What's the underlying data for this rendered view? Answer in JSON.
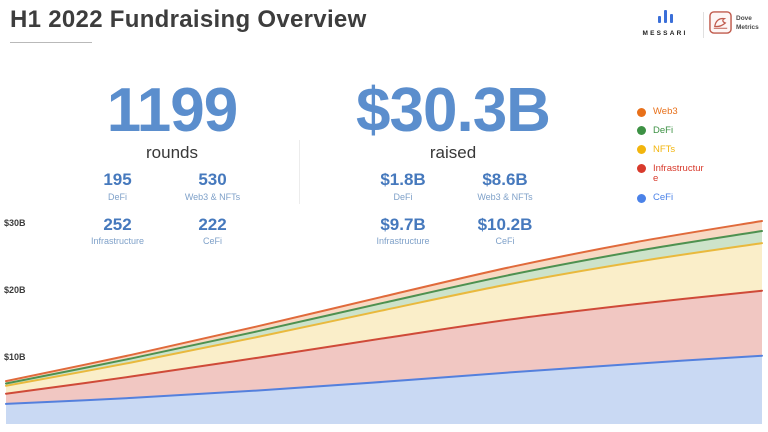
{
  "header": {
    "title": "H1 2022 Fundraising Overview",
    "messari_wordmark": "MESSARI",
    "dove_wordmark_line1": "Dove",
    "dove_wordmark_line2": "Metrics"
  },
  "colors": {
    "accent_blue": "#5b8ecd",
    "stat_value_blue": "#4679bd",
    "stat_label_blue": "#7fa1c9"
  },
  "stats": {
    "rounds": {
      "value": "1199",
      "label": "rounds",
      "items": [
        {
          "value": "195",
          "label": "DeFi"
        },
        {
          "value": "530",
          "label": "Web3 & NFTs"
        },
        {
          "value": "252",
          "label": "Infrastructure"
        },
        {
          "value": "222",
          "label": "CeFi"
        }
      ]
    },
    "raised": {
      "value": "$30.3B",
      "label": "raised",
      "items": [
        {
          "value": "$1.8B",
          "label": "DeFi"
        },
        {
          "value": "$8.6B",
          "label": "Web3 & NFTs"
        },
        {
          "value": "$9.7B",
          "label": "Infrastructure"
        },
        {
          "value": "$10.2B",
          "label": "CeFi"
        }
      ]
    }
  },
  "legend": {
    "items": [
      {
        "label": "Web3",
        "color": "#e8701a"
      },
      {
        "label": "DeFi",
        "color": "#3d9144"
      },
      {
        "label": "NFTs",
        "color": "#f2b50d"
      },
      {
        "label": "Infrastructure",
        "color": "#d83a2c"
      },
      {
        "label": "CeFi",
        "color": "#4b82e8"
      }
    ]
  },
  "chart_data": {
    "type": "area",
    "stacked": true,
    "cumulative": true,
    "title": "",
    "xlabel": "",
    "ylabel": "",
    "grid": false,
    "legend_position": "right",
    "ylim": [
      0,
      33
    ],
    "x": [
      0,
      1,
      2,
      3,
      4,
      5,
      6
    ],
    "stack_order": "bottom-to-top",
    "series": [
      {
        "name": "CeFi",
        "values": [
          3.0,
          3.9,
          5.0,
          6.3,
          7.7,
          9.0,
          10.2
        ],
        "fill": "#c9d9f3",
        "stroke": "#5480dd"
      },
      {
        "name": "Infrastructure",
        "values": [
          1.5,
          3.2,
          4.9,
          6.5,
          7.9,
          8.9,
          9.7
        ],
        "fill": "#f1c7c2",
        "stroke": "#cf4a38"
      },
      {
        "name": "NFTs",
        "values": [
          1.2,
          2.1,
          3.1,
          4.2,
          5.3,
          6.3,
          7.1
        ],
        "fill": "#faeec9",
        "stroke": "#e9b93d"
      },
      {
        "name": "DeFi",
        "values": [
          0.35,
          0.6,
          0.85,
          1.1,
          1.35,
          1.6,
          1.8
        ],
        "fill": "#cde3ca",
        "stroke": "#4e9150"
      },
      {
        "name": "Web3",
        "values": [
          0.35,
          0.55,
          0.75,
          0.95,
          1.15,
          1.35,
          1.5
        ],
        "fill": "#f8d9c3",
        "stroke": "#e06a3b"
      }
    ],
    "yticks": [
      {
        "label": "$10B",
        "value": 10
      },
      {
        "label": "$20B",
        "value": 20
      },
      {
        "label": "$30B",
        "value": 30
      }
    ]
  }
}
